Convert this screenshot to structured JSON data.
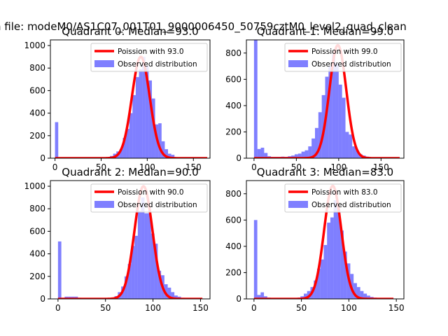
{
  "figure": {
    "suptitle": "n file: modeM0/AS1C07_001T01_9000006450_50759cztM0_level2_quad_clean"
  },
  "colors": {
    "bars": "#0000ff",
    "bar_alpha": 0.5,
    "curve": "#ff0000",
    "axes": "#000000",
    "background": "#ffffff"
  },
  "chart_data": [
    {
      "type": "bar",
      "title": "Quadrant 0: Median=93.0",
      "legend": {
        "position": "top-right",
        "line_label": "Poission with 93.0",
        "bar_label": "Observed distribution"
      },
      "xlim": [
        -5,
        168
      ],
      "ylim": [
        0,
        1050
      ],
      "xticks": [
        0,
        50,
        100,
        150
      ],
      "yticks": [
        0,
        200,
        400,
        600,
        800,
        1000
      ],
      "bin_width": 3.5,
      "bars": [
        [
          0,
          320
        ],
        [
          3.5,
          8
        ],
        [
          7,
          6
        ],
        [
          10.5,
          6
        ],
        [
          14,
          5
        ],
        [
          17.5,
          5
        ],
        [
          21,
          5
        ],
        [
          24.5,
          4
        ],
        [
          28,
          4
        ],
        [
          31.5,
          4
        ],
        [
          35,
          4
        ],
        [
          38.5,
          4
        ],
        [
          42,
          4
        ],
        [
          45.5,
          4
        ],
        [
          49,
          4
        ],
        [
          52.5,
          5
        ],
        [
          56,
          6
        ],
        [
          59.5,
          20
        ],
        [
          63,
          40
        ],
        [
          66.5,
          60
        ],
        [
          70,
          80
        ],
        [
          73.5,
          180
        ],
        [
          77,
          260
        ],
        [
          80.5,
          400
        ],
        [
          84,
          560
        ],
        [
          87.5,
          720
        ],
        [
          91,
          790
        ],
        [
          94.5,
          900
        ],
        [
          98,
          820
        ],
        [
          101.5,
          690
        ],
        [
          105,
          530
        ],
        [
          108.5,
          300
        ],
        [
          112,
          310
        ],
        [
          115.5,
          150
        ],
        [
          119,
          80
        ],
        [
          122.5,
          40
        ],
        [
          126,
          30
        ],
        [
          129.5,
          10
        ],
        [
          133,
          6
        ],
        [
          136.5,
          4
        ],
        [
          140,
          3
        ],
        [
          143.5,
          2
        ],
        [
          147,
          1
        ]
      ],
      "curve_mu": 93.0,
      "curve_peak": 900,
      "curve_xrange": [
        0,
        165
      ]
    },
    {
      "type": "bar",
      "title": "Quadrant 1: Median=99.0",
      "legend": {
        "position": "top-right",
        "line_label": "Poission with 99.0",
        "bar_label": "Observed distribution"
      },
      "xlim": [
        -9,
        177
      ],
      "ylim": [
        0,
        900
      ],
      "xticks": [
        0,
        50,
        100,
        150
      ],
      "yticks": [
        0,
        200,
        400,
        600,
        800
      ],
      "bin_width": 4,
      "bars": [
        [
          0,
          900
        ],
        [
          4,
          70
        ],
        [
          8,
          80
        ],
        [
          12,
          40
        ],
        [
          16,
          15
        ],
        [
          20,
          10
        ],
        [
          24,
          10
        ],
        [
          28,
          10
        ],
        [
          32,
          12
        ],
        [
          36,
          10
        ],
        [
          40,
          15
        ],
        [
          44,
          20
        ],
        [
          48,
          30
        ],
        [
          52,
          35
        ],
        [
          56,
          50
        ],
        [
          60,
          60
        ],
        [
          64,
          90
        ],
        [
          68,
          150
        ],
        [
          72,
          230
        ],
        [
          76,
          350
        ],
        [
          80,
          480
        ],
        [
          84,
          620
        ],
        [
          88,
          700
        ],
        [
          92,
          790
        ],
        [
          96,
          720
        ],
        [
          100,
          560
        ],
        [
          104,
          460
        ],
        [
          108,
          200
        ],
        [
          112,
          180
        ],
        [
          116,
          90
        ],
        [
          120,
          60
        ],
        [
          124,
          30
        ],
        [
          128,
          20
        ],
        [
          132,
          12
        ],
        [
          136,
          8
        ],
        [
          140,
          6
        ],
        [
          144,
          4
        ],
        [
          148,
          3
        ],
        [
          152,
          2
        ],
        [
          156,
          2
        ],
        [
          160,
          1
        ],
        [
          164,
          1
        ]
      ],
      "curve_mu": 99.0,
      "curve_peak": 860,
      "curve_xrange": [
        0,
        172
      ]
    },
    {
      "type": "bar",
      "title": "Quadrant 2: Median=90.0",
      "legend": {
        "position": "top-right",
        "line_label": "Poission with 90.0",
        "bar_label": "Observed distribution"
      },
      "xlim": [
        -8,
        160
      ],
      "ylim": [
        0,
        1050
      ],
      "xticks": [
        0,
        50,
        100,
        150
      ],
      "yticks": [
        0,
        200,
        400,
        600,
        800,
        1000
      ],
      "bin_width": 3.5,
      "bars": [
        [
          0,
          510
        ],
        [
          3.5,
          10
        ],
        [
          7,
          20
        ],
        [
          10.5,
          20
        ],
        [
          14,
          20
        ],
        [
          17.5,
          20
        ],
        [
          21,
          10
        ],
        [
          24.5,
          8
        ],
        [
          28,
          6
        ],
        [
          31.5,
          5
        ],
        [
          35,
          5
        ],
        [
          38.5,
          5
        ],
        [
          42,
          5
        ],
        [
          45.5,
          5
        ],
        [
          49,
          6
        ],
        [
          52.5,
          8
        ],
        [
          56,
          10
        ],
        [
          59.5,
          25
        ],
        [
          63,
          60
        ],
        [
          66.5,
          110
        ],
        [
          70,
          200
        ],
        [
          73.5,
          310
        ],
        [
          77,
          470
        ],
        [
          80.5,
          560
        ],
        [
          84,
          780
        ],
        [
          87.5,
          900
        ],
        [
          91,
          760
        ],
        [
          94.5,
          760
        ],
        [
          98,
          580
        ],
        [
          101.5,
          490
        ],
        [
          105,
          250
        ],
        [
          108.5,
          210
        ],
        [
          112,
          130
        ],
        [
          115.5,
          100
        ],
        [
          119,
          60
        ],
        [
          122.5,
          30
        ],
        [
          126,
          20
        ],
        [
          129.5,
          10
        ],
        [
          133,
          6
        ],
        [
          136.5,
          4
        ],
        [
          140,
          3
        ]
      ],
      "curve_mu": 90.0,
      "curve_peak": 1000,
      "curve_xrange": [
        0,
        152
      ]
    },
    {
      "type": "bar",
      "title": "Quadrant 3: Median=83.0",
      "legend": {
        "position": "top-right",
        "line_label": "Poission with 83.0",
        "bar_label": "Observed distribution"
      },
      "xlim": [
        -8,
        158
      ],
      "ylim": [
        0,
        900
      ],
      "xticks": [
        0,
        50,
        100,
        150
      ],
      "yticks": [
        0,
        200,
        400,
        600,
        800
      ],
      "bin_width": 3.5,
      "bars": [
        [
          0,
          600
        ],
        [
          3.5,
          30
        ],
        [
          7,
          50
        ],
        [
          10.5,
          20
        ],
        [
          14,
          10
        ],
        [
          17.5,
          8
        ],
        [
          21,
          6
        ],
        [
          24.5,
          5
        ],
        [
          28,
          5
        ],
        [
          31.5,
          5
        ],
        [
          35,
          5
        ],
        [
          38.5,
          5
        ],
        [
          42,
          8
        ],
        [
          45.5,
          10
        ],
        [
          49,
          20
        ],
        [
          52.5,
          40
        ],
        [
          56,
          60
        ],
        [
          59.5,
          90
        ],
        [
          63,
          140
        ],
        [
          66.5,
          230
        ],
        [
          70,
          300
        ],
        [
          73.5,
          410
        ],
        [
          77,
          580
        ],
        [
          80.5,
          620
        ],
        [
          84,
          750
        ],
        [
          87.5,
          680
        ],
        [
          91,
          520
        ],
        [
          94.5,
          360
        ],
        [
          98,
          270
        ],
        [
          101.5,
          190
        ],
        [
          105,
          120
        ],
        [
          108.5,
          90
        ],
        [
          112,
          60
        ],
        [
          115.5,
          40
        ],
        [
          119,
          25
        ],
        [
          122.5,
          15
        ],
        [
          126,
          10
        ],
        [
          129.5,
          6
        ],
        [
          133,
          4
        ],
        [
          136.5,
          3
        ],
        [
          140,
          2
        ]
      ],
      "curve_mu": 83.0,
      "curve_peak": 860,
      "curve_xrange": [
        0,
        147
      ]
    }
  ]
}
